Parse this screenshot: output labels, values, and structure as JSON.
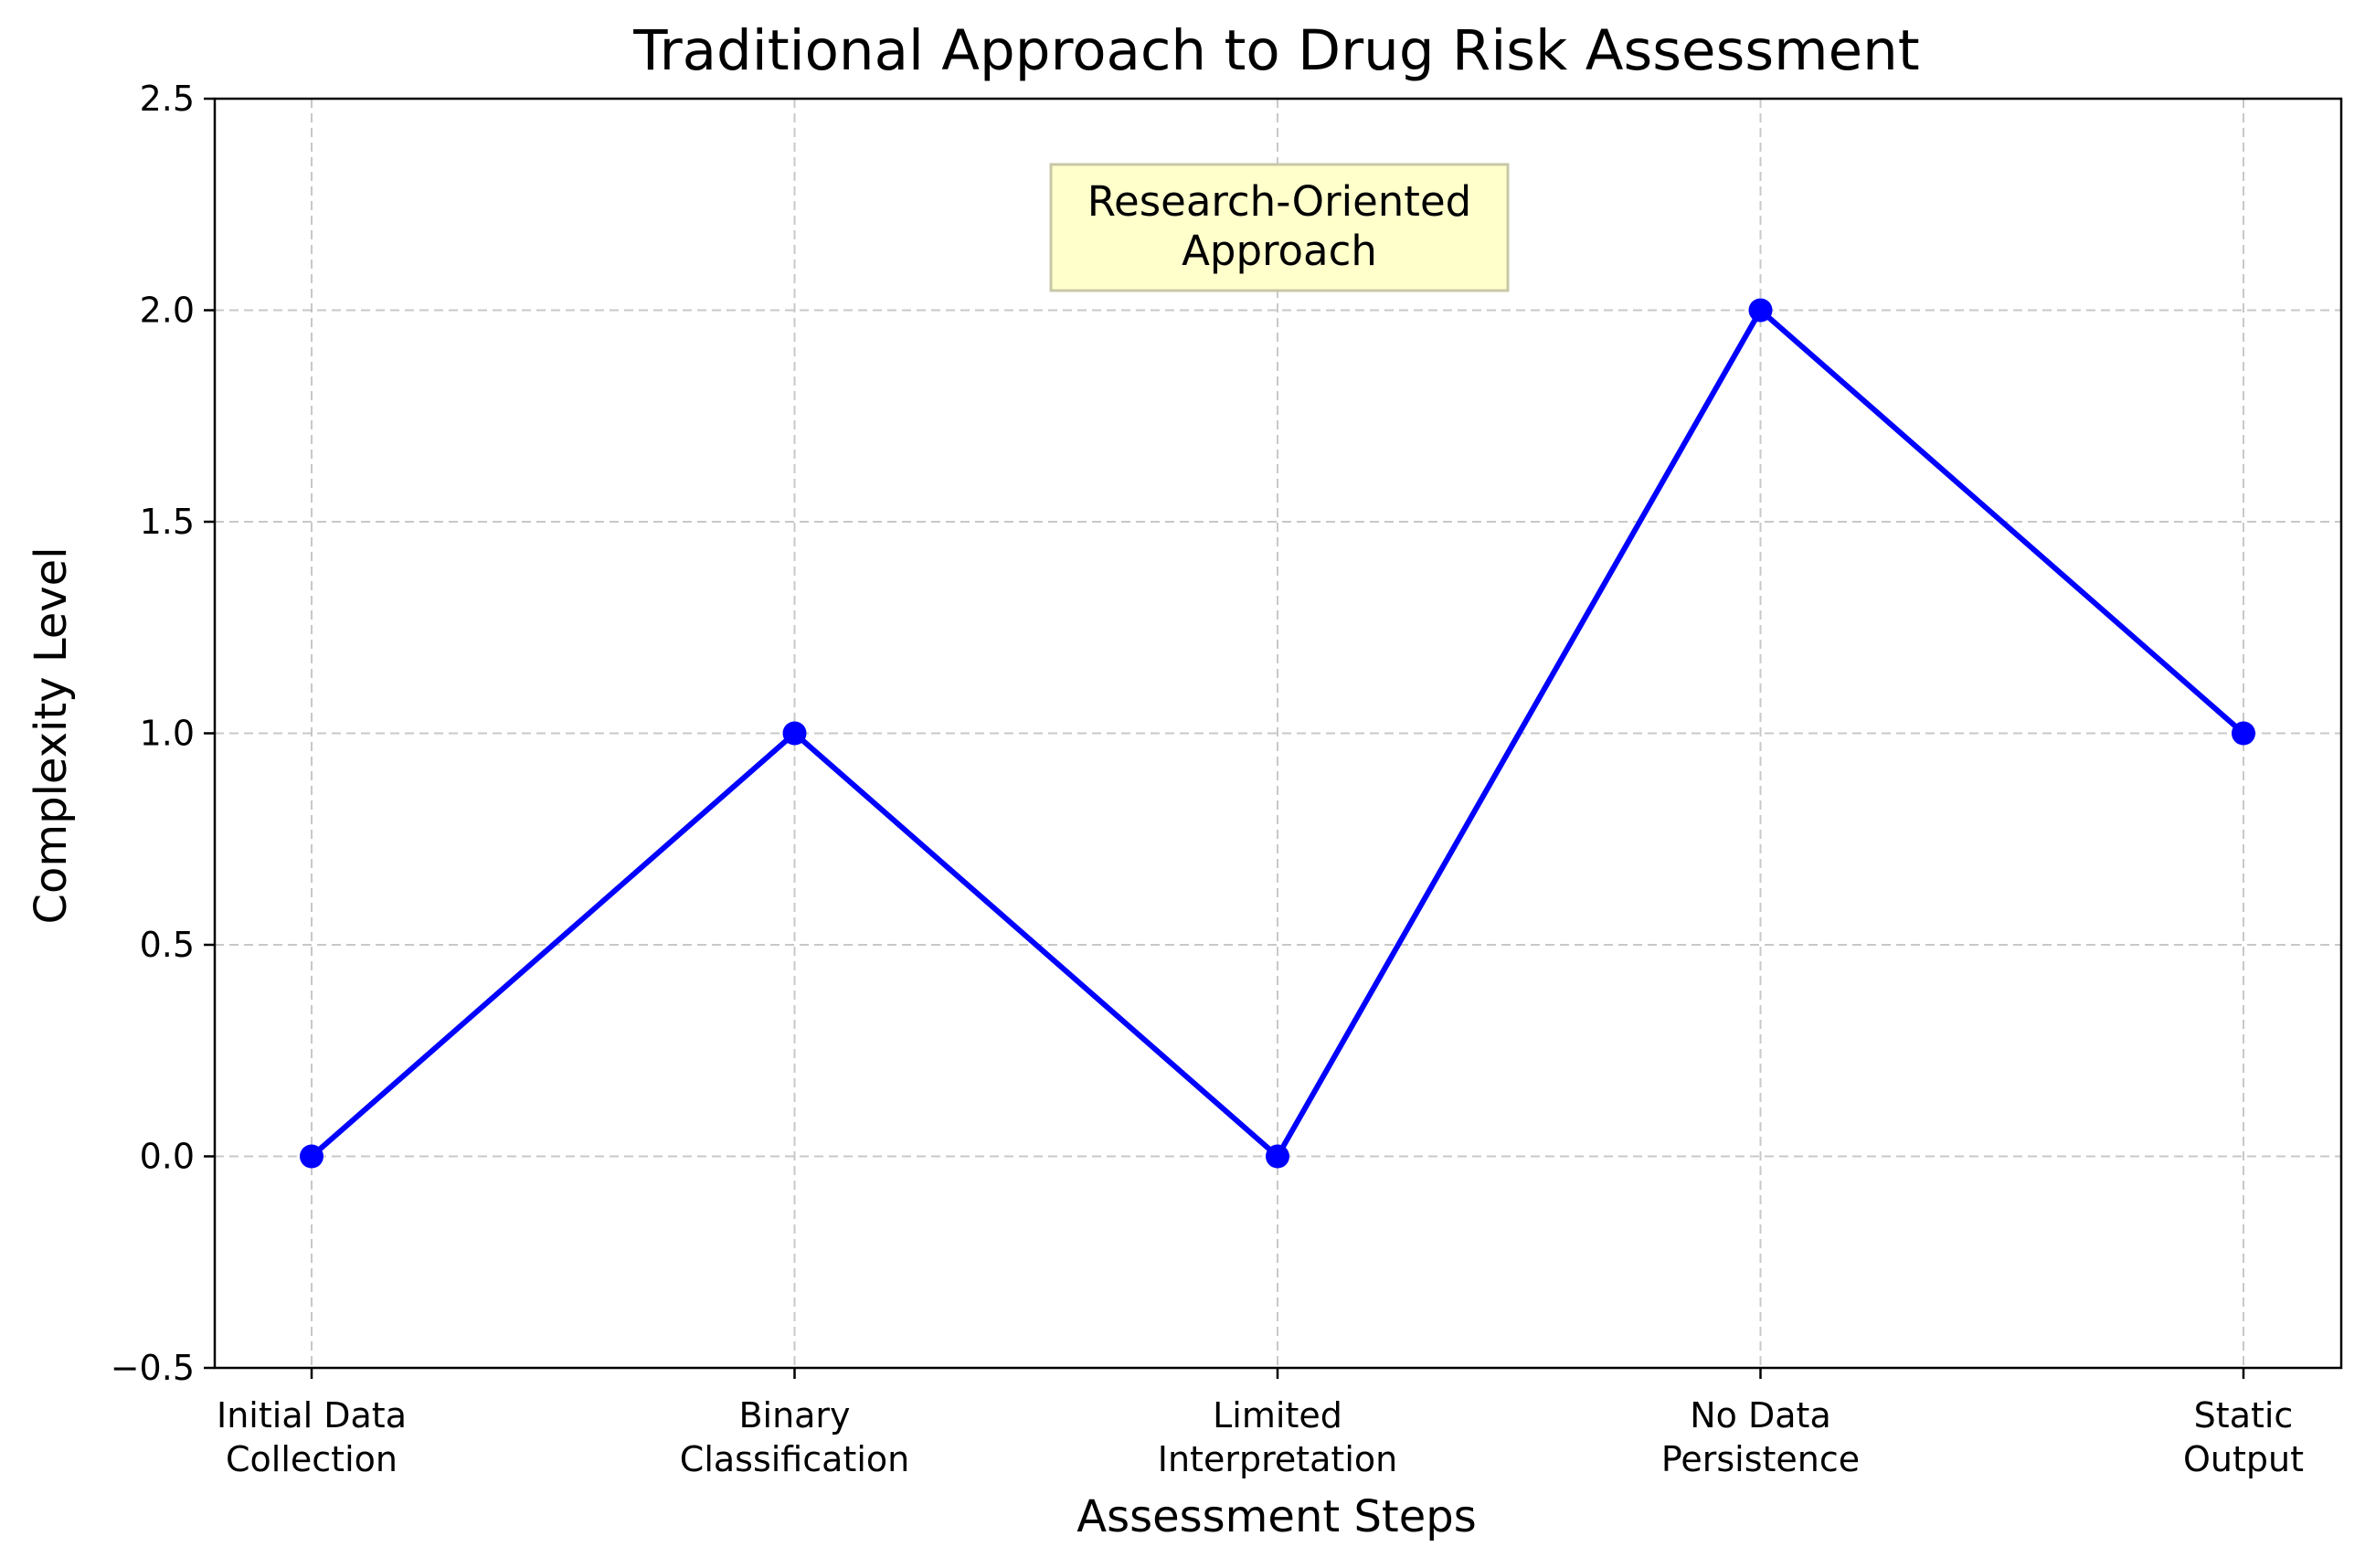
{
  "chart_data": {
    "type": "line",
    "title": "Traditional Approach to Drug Risk Assessment",
    "xlabel": "Assessment Steps",
    "ylabel": "Complexity Level",
    "categories": [
      [
        "Initial Data",
        "Collection"
      ],
      [
        "Binary",
        "Classification"
      ],
      [
        "Limited",
        "Interpretation"
      ],
      [
        "No Data",
        "Persistence"
      ],
      [
        "Static",
        "Output"
      ]
    ],
    "series": [
      {
        "values": [
          0,
          1,
          0,
          2,
          1
        ],
        "color": "#0000ff",
        "marker": "circle"
      }
    ],
    "ylim": [
      -0.5,
      2.5
    ],
    "yticks": [
      "−0.5",
      "0.0",
      "0.5",
      "1.0",
      "1.5",
      "2.0",
      "2.5"
    ],
    "ytick_values": [
      -0.5,
      0,
      0.5,
      1,
      1.5,
      2,
      2.5
    ],
    "grid": true,
    "grid_style": "dashed",
    "annotation": {
      "lines": [
        "Research-Oriented",
        "Approach"
      ],
      "background": "#ffffcc",
      "border": "#c8c8a8"
    }
  }
}
